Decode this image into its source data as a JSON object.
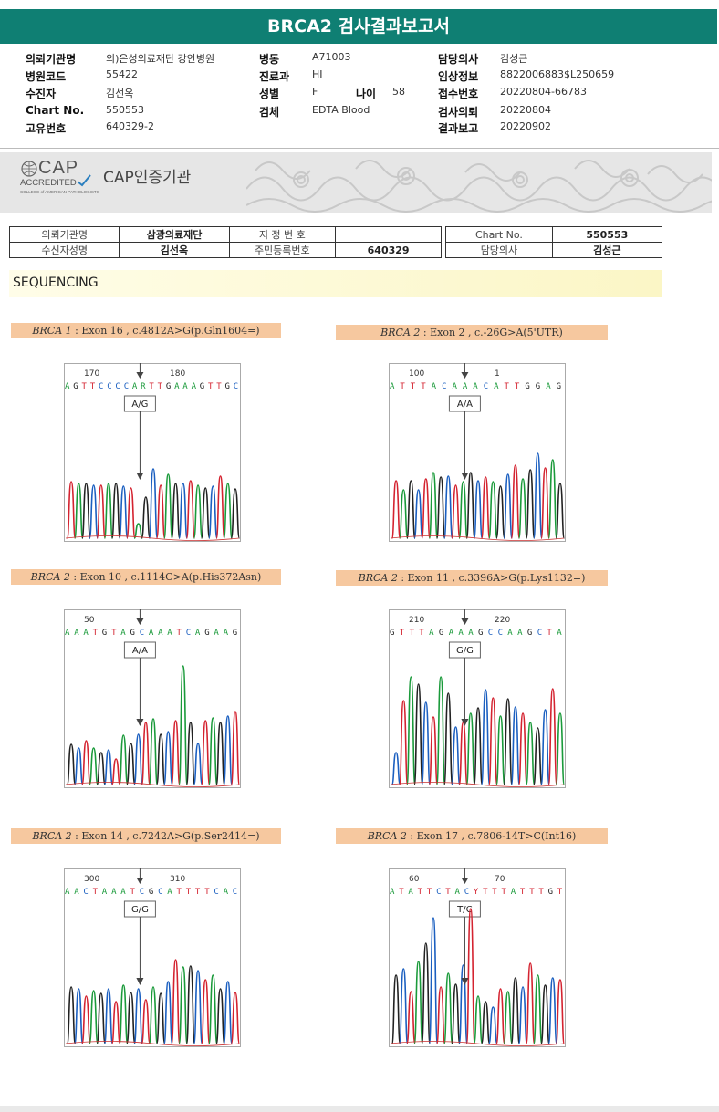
{
  "report": {
    "title": "BRCA2 검사결과보고서"
  },
  "info": {
    "left": [
      {
        "label": "의뢰기관명",
        "value": "의)은성의료재단 강안병원"
      },
      {
        "label": "병원코드",
        "value": "55422"
      },
      {
        "label": "수진자",
        "value": "김선옥"
      },
      {
        "label": "Chart No.",
        "value": "550553"
      },
      {
        "label": "고유번호",
        "value": "640329-2"
      }
    ],
    "mid": [
      {
        "label": "병동",
        "value": "A71003"
      },
      {
        "label": "진료과",
        "value": "HI"
      },
      {
        "label": "성별",
        "value": "F"
      },
      {
        "label": "검체",
        "value": "EDTA Blood"
      }
    ],
    "age": {
      "label": "나이",
      "value": "58"
    },
    "right": [
      {
        "label": "담당의사",
        "value": "김성근"
      },
      {
        "label": "임상정보",
        "value": "8822006883$L250659"
      },
      {
        "label": "접수번호",
        "value": "20220804-66783"
      },
      {
        "label": "검사의뢰",
        "value": "20220804"
      },
      {
        "label": "결과보고",
        "value": "20220902"
      }
    ]
  },
  "cap": {
    "logo_word": "CAP",
    "logo_accredited": "ACCREDITED",
    "logo_college": "COLLEGE of AMERICAN PATHOLOGISTS",
    "title": "CAP인증기관"
  },
  "patient_table": {
    "r1": [
      "의뢰기관명",
      "삼광의료재단",
      "지 정 번 호",
      "",
      "Chart No.",
      "550553"
    ],
    "r2": [
      "수신자성명",
      "김선옥",
      "주민등록번호",
      "640329",
      "담당의사",
      "김성근"
    ]
  },
  "section": {
    "title": "SEQUENCING"
  },
  "panels": [
    {
      "gene": "BRCA 1",
      "desc": " : Exon 16 , c.4812A>G(p.Gln1604=)",
      "call": "A/G",
      "seq": "AGTTCCCCARTTGAAAGTTGC",
      "pos1": "170",
      "pos2": "180",
      "peaks": [
        62,
        60,
        60,
        58,
        58,
        60,
        60,
        57,
        55,
        16,
        45,
        76,
        58,
        70,
        60,
        60,
        63,
        58,
        55,
        57,
        68,
        60,
        54
      ]
    },
    {
      "gene": "BRCA 2",
      "desc": " : Exon 2 , c.-26G>A(5'UTR)",
      "call": "A/A",
      "seq": "ATTTACAAACATTGGAG",
      "pos1": "100",
      "pos2": "1",
      "peaks": [
        63,
        53,
        63,
        53,
        65,
        72,
        67,
        68,
        58,
        62,
        72,
        63,
        67,
        62,
        57,
        70,
        80,
        65,
        75,
        93,
        77,
        86,
        60
      ]
    },
    {
      "gene": "BRCA 2",
      "desc": " : Exon 10 , c.1114C>A(p.His372Asn)",
      "call": "A/A",
      "seq": "AAATGTAGCAAATCAGAAG",
      "pos1": "50",
      "pos2": "",
      "peaks": [
        44,
        40,
        48,
        40,
        35,
        38,
        28,
        54,
        45,
        55,
        68,
        72,
        55,
        58,
        70,
        130,
        68,
        45,
        70,
        73,
        68,
        75,
        80
      ]
    },
    {
      "gene": "BRCA 2",
      "desc": " : Exon 11 , c.3396A>G(p.Lys1132=)",
      "call": "G/G",
      "seq": "GTTTAGAAAGCCAAGCTA",
      "pos1": "210",
      "pos2": "220",
      "peaks": [
        35,
        92,
        118,
        110,
        90,
        74,
        118,
        100,
        63,
        68,
        78,
        84,
        104,
        95,
        75,
        94,
        85,
        78,
        68,
        62,
        82,
        105,
        78
      ]
    },
    {
      "gene": "BRCA 2",
      "desc": " : Exon 14 , c.7242A>G(p.Ser2414=)",
      "call": "G/G",
      "seq": "AACTAAATCGCATTTTCAC",
      "pos1": "300",
      "pos2": "310",
      "peaks": [
        62,
        60,
        52,
        58,
        55,
        60,
        46,
        64,
        56,
        60,
        48,
        62,
        55,
        68,
        92,
        84,
        85,
        80,
        70,
        75,
        60,
        68,
        56
      ]
    },
    {
      "gene": "BRCA 2",
      "desc": " : Exon 17 , c.7806-14T>C(Int16)",
      "call": "T/C",
      "seq": "ATATTCTACYTTTATTTGT",
      "pos1": "60",
      "pos2": "70",
      "peaks": [
        75,
        82,
        57,
        90,
        110,
        138,
        62,
        77,
        65,
        86,
        148,
        52,
        46,
        40,
        60,
        57,
        72,
        62,
        88,
        75,
        64,
        72,
        70
      ]
    }
  ]
}
